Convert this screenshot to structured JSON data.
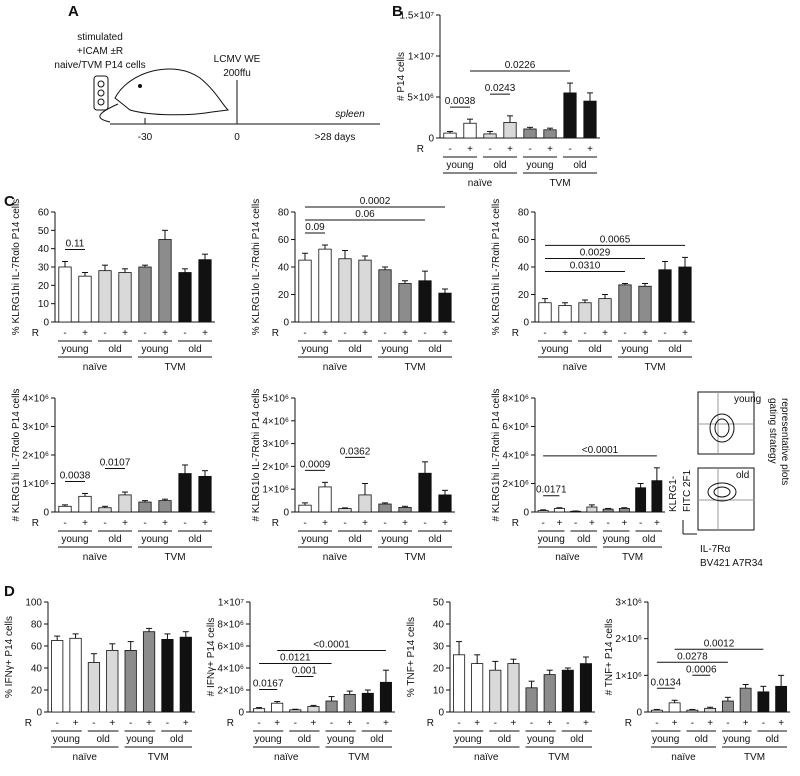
{
  "panel_labels": {
    "a": "A",
    "b": "B",
    "c": "C",
    "d": "D"
  },
  "diagram": {
    "line1": "stimulated",
    "line2": "+ICAM ±R",
    "line3": "naive/TVM P14 cells",
    "infection1": "LCMV WE",
    "infection2": "200ffu",
    "organ": "spleen",
    "t1": "-30",
    "t2": "0",
    "t3": ">28 days"
  },
  "flow_plots": {
    "panels": [
      "young",
      "old"
    ],
    "y_axis": [
      "KLRG1-",
      "FITC 2F1"
    ],
    "x_axis": [
      "IL-7Rα",
      "BV421 A7R34"
    ],
    "side": [
      "gating strategy",
      "representative plots"
    ]
  },
  "chart_data": [
    {
      "type": "bar",
      "y_label": "# P14 cells",
      "r_label": "R",
      "categories": [
        "-",
        "+",
        "-",
        "+",
        "-",
        "+",
        "-",
        "+"
      ],
      "groups": [
        "young",
        "old",
        "young",
        "old"
      ],
      "supergroups": [
        "naïve",
        "TVM"
      ],
      "colors": [
        "#ffffff",
        "#ffffff",
        "#d9d9d9",
        "#d9d9d9",
        "#8c8c8c",
        "#8c8c8c",
        "#111111",
        "#111111"
      ],
      "values": [
        600000,
        1800000,
        500000,
        1900000,
        1100000,
        1000000,
        5500000,
        4500000
      ],
      "errors": [
        200000,
        500000,
        300000,
        800000,
        200000,
        200000,
        1200000,
        1000000
      ],
      "ylim": [
        0,
        15000000
      ],
      "yticks": [
        0,
        {
          "value": 5000000,
          "label": "5×10⁶"
        },
        {
          "value": 10000000,
          "label": "1×10⁷"
        },
        {
          "value": 15000000,
          "label": "1.5×10⁷"
        }
      ],
      "brackets": [
        {
          "from": 0,
          "to": 1,
          "label": "0.0038"
        },
        {
          "from": 2,
          "to": 3,
          "label": "0.0243"
        },
        {
          "from": 1,
          "to": 6,
          "label": "0.0226"
        }
      ]
    },
    {
      "type": "bar",
      "y_label": "% KLRG1hi IL-7Rαlo P14 cells",
      "r_label": "R",
      "categories": [
        "-",
        "+",
        "-",
        "+",
        "-",
        "+",
        "-",
        "+"
      ],
      "groups": [
        "young",
        "old",
        "young",
        "old"
      ],
      "supergroups": [
        "naïve",
        "TVM"
      ],
      "colors": [
        "#ffffff",
        "#ffffff",
        "#d9d9d9",
        "#d9d9d9",
        "#8c8c8c",
        "#8c8c8c",
        "#111111",
        "#111111"
      ],
      "values": [
        30,
        25,
        28,
        27,
        30,
        45,
        27,
        34
      ],
      "errors": [
        3,
        2,
        3,
        2,
        1,
        5,
        2,
        3
      ],
      "ylim": [
        0,
        60
      ],
      "yticks": [
        0,
        10,
        20,
        30,
        40,
        50,
        60
      ],
      "brackets": [
        {
          "from": 0,
          "to": 1,
          "label": "0.11"
        }
      ]
    },
    {
      "type": "bar",
      "y_label": "% KLRG1lo IL-7Rαhi P14 cells",
      "r_label": "R",
      "categories": [
        "-",
        "+",
        "-",
        "+",
        "-",
        "+",
        "-",
        "+"
      ],
      "groups": [
        "young",
        "old",
        "young",
        "old"
      ],
      "supergroups": [
        "naïve",
        "TVM"
      ],
      "colors": [
        "#ffffff",
        "#ffffff",
        "#d9d9d9",
        "#d9d9d9",
        "#8c8c8c",
        "#8c8c8c",
        "#111111",
        "#111111"
      ],
      "values": [
        45,
        53,
        46,
        45,
        38,
        28,
        30,
        21
      ],
      "errors": [
        5,
        3,
        6,
        3,
        2,
        2,
        7,
        3
      ],
      "ylim": [
        0,
        80
      ],
      "yticks": [
        0,
        20,
        40,
        60,
        80
      ],
      "brackets": [
        {
          "from": 0,
          "to": 1,
          "label": "0.09"
        },
        {
          "from": 0,
          "to": 6,
          "label": "0.06"
        },
        {
          "from": 0,
          "to": 7,
          "label": "0.0002"
        }
      ]
    },
    {
      "type": "bar",
      "y_label": "% KLRG1hi IL-7Rαhi P14 cells",
      "r_label": "R",
      "categories": [
        "-",
        "+",
        "-",
        "+",
        "-",
        "+",
        "-",
        "+"
      ],
      "groups": [
        "young",
        "old",
        "young",
        "old"
      ],
      "supergroups": [
        "naïve",
        "TVM"
      ],
      "colors": [
        "#ffffff",
        "#ffffff",
        "#d9d9d9",
        "#d9d9d9",
        "#8c8c8c",
        "#8c8c8c",
        "#111111",
        "#111111"
      ],
      "values": [
        14,
        12,
        14,
        17,
        27,
        26,
        38,
        40
      ],
      "errors": [
        3,
        2,
        2,
        3,
        1,
        2,
        6,
        7
      ],
      "ylim": [
        0,
        80
      ],
      "yticks": [
        0,
        20,
        40,
        60,
        80
      ],
      "brackets": [
        {
          "from": 0,
          "to": 4,
          "label": "0.0310"
        },
        {
          "from": 0,
          "to": 5,
          "label": "0.0029"
        },
        {
          "from": 0,
          "to": 7,
          "label": "0.0065"
        }
      ]
    },
    {
      "type": "bar",
      "y_label": "# KLRG1hi IL-7Rαlo P14 cells",
      "r_label": "R",
      "categories": [
        "-",
        "+",
        "-",
        "+",
        "-",
        "+",
        "-",
        "+"
      ],
      "groups": [
        "young",
        "old",
        "young",
        "old"
      ],
      "supergroups": [
        "naïve",
        "TVM"
      ],
      "colors": [
        "#ffffff",
        "#ffffff",
        "#d9d9d9",
        "#d9d9d9",
        "#8c8c8c",
        "#8c8c8c",
        "#111111",
        "#111111"
      ],
      "values": [
        200000,
        550000,
        150000,
        600000,
        350000,
        400000,
        1350000,
        1250000
      ],
      "errors": [
        50000,
        100000,
        50000,
        100000,
        50000,
        50000,
        300000,
        200000
      ],
      "ylim": [
        0,
        4000000
      ],
      "yticks": [
        0,
        {
          "value": 1000000,
          "label": "1×10⁶"
        },
        {
          "value": 2000000,
          "label": "2×10⁶"
        },
        {
          "value": 3000000,
          "label": "3×10⁶"
        },
        {
          "value": 4000000,
          "label": "4×10⁶"
        }
      ],
      "brackets": [
        {
          "from": 0,
          "to": 1,
          "label": "0.0038"
        },
        {
          "from": 2,
          "to": 3,
          "label": "0.0107"
        }
      ]
    },
    {
      "type": "bar",
      "y_label": "# KLRG1lo IL-7Rαhi P14 cells",
      "r_label": "R",
      "categories": [
        "-",
        "+",
        "-",
        "+",
        "-",
        "+",
        "-",
        "+"
      ],
      "groups": [
        "young",
        "old",
        "young",
        "old"
      ],
      "supergroups": [
        "naïve",
        "TVM"
      ],
      "colors": [
        "#ffffff",
        "#ffffff",
        "#d9d9d9",
        "#d9d9d9",
        "#8c8c8c",
        "#8c8c8c",
        "#111111",
        "#111111"
      ],
      "values": [
        300000,
        1100000,
        150000,
        750000,
        350000,
        200000,
        1700000,
        750000
      ],
      "errors": [
        100000,
        200000,
        30000,
        500000,
        50000,
        50000,
        500000,
        200000
      ],
      "ylim": [
        0,
        5000000
      ],
      "yticks": [
        0,
        {
          "value": 1000000,
          "label": "1×10⁶"
        },
        {
          "value": 2000000,
          "label": "2×10⁶"
        },
        {
          "value": 3000000,
          "label": "3×10⁶"
        },
        {
          "value": 4000000,
          "label": "4×10⁶"
        },
        {
          "value": 5000000,
          "label": "5×10⁶"
        }
      ],
      "brackets": [
        {
          "from": 0,
          "to": 1,
          "label": "0.0009"
        },
        {
          "from": 2,
          "to": 3,
          "label": "0.0362"
        }
      ]
    },
    {
      "type": "bar",
      "y_label": "# KLRG1hi IL-7Rαhi P14 cells",
      "r_label": "R",
      "categories": [
        "-",
        "+",
        "-",
        "+",
        "-",
        "+",
        "-",
        "+"
      ],
      "groups": [
        "young",
        "old",
        "young",
        "old"
      ],
      "supergroups": [
        "naïve",
        "TVM"
      ],
      "colors": [
        "#ffffff",
        "#ffffff",
        "#d9d9d9",
        "#d9d9d9",
        "#8c8c8c",
        "#8c8c8c",
        "#111111",
        "#111111"
      ],
      "values": [
        100000,
        250000,
        50000,
        350000,
        200000,
        250000,
        1700000,
        2200000
      ],
      "errors": [
        50000,
        50000,
        20000,
        150000,
        50000,
        50000,
        300000,
        900000
      ],
      "ylim": [
        0,
        8000000
      ],
      "yticks": [
        0,
        {
          "value": 2000000,
          "label": "2×10⁶"
        },
        {
          "value": 4000000,
          "label": "4×10⁶"
        },
        {
          "value": 6000000,
          "label": "6×10⁶"
        },
        {
          "value": 8000000,
          "label": "8×10⁶"
        }
      ],
      "brackets": [
        {
          "from": 0,
          "to": 1,
          "label": "0.0171"
        },
        {
          "from": 0,
          "to": 7,
          "label": "<0.0001"
        }
      ]
    },
    {
      "type": "bar",
      "y_label": "% IFNγ+ P14 cells",
      "r_label": "R",
      "categories": [
        "-",
        "+",
        "-",
        "+",
        "-",
        "+",
        "-",
        "+"
      ],
      "groups": [
        "young",
        "old",
        "young",
        "old"
      ],
      "supergroups": [
        "naïve",
        "TVM"
      ],
      "colors": [
        "#ffffff",
        "#ffffff",
        "#d9d9d9",
        "#d9d9d9",
        "#8c8c8c",
        "#8c8c8c",
        "#111111",
        "#111111"
      ],
      "values": [
        65,
        67,
        45,
        56,
        56,
        73,
        66,
        68
      ],
      "errors": [
        4,
        4,
        8,
        6,
        8,
        3,
        5,
        5
      ],
      "ylim": [
        0,
        100
      ],
      "yticks": [
        0,
        20,
        40,
        60,
        80,
        100
      ],
      "brackets": []
    },
    {
      "type": "bar",
      "y_label": "# IFNγ+ P14 cells",
      "r_label": "R",
      "categories": [
        "-",
        "+",
        "-",
        "+",
        "-",
        "+",
        "-",
        "+"
      ],
      "groups": [
        "young",
        "old",
        "young",
        "old"
      ],
      "supergroups": [
        "naïve",
        "TVM"
      ],
      "colors": [
        "#ffffff",
        "#ffffff",
        "#d9d9d9",
        "#d9d9d9",
        "#8c8c8c",
        "#8c8c8c",
        "#111111",
        "#111111"
      ],
      "values": [
        300000,
        800000,
        200000,
        500000,
        1000000,
        1600000,
        1700000,
        2700000
      ],
      "errors": [
        100000,
        150000,
        50000,
        100000,
        400000,
        300000,
        300000,
        1100000
      ],
      "ylim": [
        0,
        10000000
      ],
      "yticks": [
        0,
        {
          "value": 2000000,
          "label": "2×10⁶"
        },
        {
          "value": 4000000,
          "label": "4×10⁶"
        },
        {
          "value": 6000000,
          "label": "6×10⁶"
        },
        {
          "value": 8000000,
          "label": "8×10⁶"
        },
        {
          "value": 10000000,
          "label": "1×10⁷"
        }
      ],
      "brackets": [
        {
          "from": 0,
          "to": 1,
          "label": "0.0167"
        },
        {
          "from": 2,
          "to": 3,
          "label": "0.001"
        },
        {
          "from": 0,
          "to": 4,
          "label": "0.0121"
        },
        {
          "from": 1,
          "to": 7,
          "label": "<0.0001"
        }
      ]
    },
    {
      "type": "bar",
      "y_label": "% TNF+ P14 cells",
      "r_label": "R",
      "categories": [
        "-",
        "+",
        "-",
        "+",
        "-",
        "+",
        "-",
        "+"
      ],
      "groups": [
        "young",
        "old",
        "young",
        "old"
      ],
      "supergroups": [
        "naïve",
        "TVM"
      ],
      "colors": [
        "#ffffff",
        "#ffffff",
        "#d9d9d9",
        "#d9d9d9",
        "#8c8c8c",
        "#8c8c8c",
        "#111111",
        "#111111"
      ],
      "values": [
        26,
        22,
        19,
        22,
        11,
        17,
        19,
        22
      ],
      "errors": [
        6,
        4,
        4,
        2,
        3,
        2,
        1,
        3
      ],
      "ylim": [
        0,
        50
      ],
      "yticks": [
        0,
        10,
        20,
        30,
        40,
        50
      ],
      "brackets": []
    },
    {
      "type": "bar",
      "y_label": "# TNF+ P14 cells",
      "r_label": "R",
      "categories": [
        "-",
        "+",
        "-",
        "+",
        "-",
        "+",
        "-",
        "+"
      ],
      "groups": [
        "young",
        "old",
        "young",
        "old"
      ],
      "supergroups": [
        "naïve",
        "TVM"
      ],
      "colors": [
        "#ffffff",
        "#ffffff",
        "#d9d9d9",
        "#d9d9d9",
        "#8c8c8c",
        "#8c8c8c",
        "#111111",
        "#111111"
      ],
      "values": [
        50000,
        250000,
        50000,
        100000,
        300000,
        650000,
        550000,
        700000
      ],
      "errors": [
        20000,
        70000,
        20000,
        30000,
        100000,
        100000,
        150000,
        300000
      ],
      "ylim": [
        0,
        3000000
      ],
      "yticks": [
        0,
        {
          "value": 1000000,
          "label": "1×10⁶"
        },
        {
          "value": 2000000,
          "label": "2×10⁶"
        },
        {
          "value": 3000000,
          "label": "3×10⁶"
        }
      ],
      "brackets": [
        {
          "from": 0,
          "to": 1,
          "label": "0.0134"
        },
        {
          "from": 2,
          "to": 3,
          "label": "0.0006"
        },
        {
          "from": 0,
          "to": 4,
          "label": "0.0278"
        },
        {
          "from": 1,
          "to": 6,
          "label": "0.0012"
        }
      ]
    }
  ]
}
